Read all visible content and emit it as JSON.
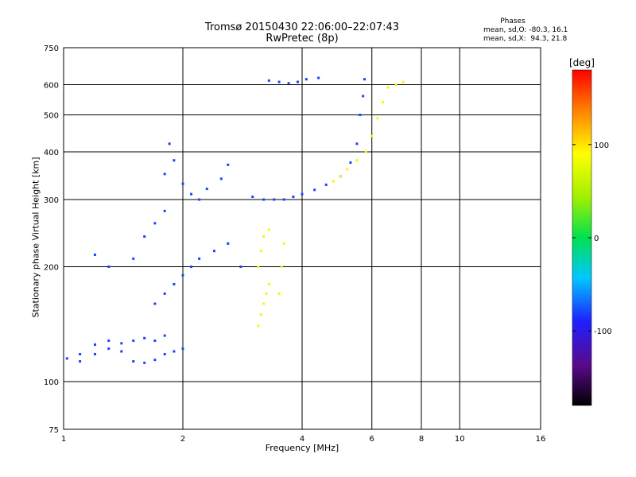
{
  "header": {
    "title_line1": "Tromsø 20150430 22:06:00–22:07:43",
    "title_line2": "RwPretec (8p)"
  },
  "phases": {
    "title": "Phases",
    "line_o": "mean, sd,O: -80.3, 16.1",
    "line_x": "mean, sd,X:  94.3, 21.8"
  },
  "colorbar": {
    "label": "[deg]",
    "ticks": [
      100,
      0,
      -100
    ],
    "range": [
      -180,
      180
    ]
  },
  "chart_data": {
    "type": "scatter",
    "title": "Tromsø 20150430 22:06:00–22:07:43",
    "subtitle": "RwPretec (8p)",
    "xlabel": "Frequency [MHz]",
    "ylabel": "Stationary phase Virtual Height [km]",
    "x_scale": "log",
    "y_scale": "log",
    "xlim": [
      1,
      16
    ],
    "ylim": [
      75,
      750
    ],
    "x_ticks": [
      1,
      2,
      4,
      6,
      8,
      10,
      16
    ],
    "y_ticks": [
      75,
      100,
      200,
      300,
      400,
      500,
      600,
      750
    ],
    "grid": true,
    "color_by": "phase (deg)",
    "series": [
      {
        "name": "O-mode",
        "phase_mean": -80.3,
        "phase_sd": 16.1,
        "points": [
          [
            1.02,
            115
          ],
          [
            1.1,
            113
          ],
          [
            1.2,
            118
          ],
          [
            1.3,
            122
          ],
          [
            1.4,
            120
          ],
          [
            1.5,
            113
          ],
          [
            1.6,
            112
          ],
          [
            1.7,
            114
          ],
          [
            1.8,
            118
          ],
          [
            1.9,
            120
          ],
          [
            2.0,
            122
          ],
          [
            1.1,
            118
          ],
          [
            1.2,
            125
          ],
          [
            1.3,
            128
          ],
          [
            1.4,
            126
          ],
          [
            1.5,
            128
          ],
          [
            1.6,
            130
          ],
          [
            1.7,
            128
          ],
          [
            1.8,
            132
          ],
          [
            1.2,
            215
          ],
          [
            1.3,
            200
          ],
          [
            1.5,
            210
          ],
          [
            1.6,
            240
          ],
          [
            1.7,
            260
          ],
          [
            1.8,
            280
          ],
          [
            1.8,
            350
          ],
          [
            1.85,
            420
          ],
          [
            1.9,
            380
          ],
          [
            2.0,
            330
          ],
          [
            2.1,
            310
          ],
          [
            2.2,
            300
          ],
          [
            2.3,
            320
          ],
          [
            2.5,
            340
          ],
          [
            2.6,
            370
          ],
          [
            1.7,
            160
          ],
          [
            1.8,
            170
          ],
          [
            1.9,
            180
          ],
          [
            2.0,
            190
          ],
          [
            2.1,
            200
          ],
          [
            2.2,
            210
          ],
          [
            2.4,
            220
          ],
          [
            2.6,
            230
          ],
          [
            2.8,
            200
          ],
          [
            3.0,
            305
          ],
          [
            3.2,
            300
          ],
          [
            3.4,
            300
          ],
          [
            3.6,
            300
          ],
          [
            3.8,
            305
          ],
          [
            4.0,
            310
          ],
          [
            4.3,
            318
          ],
          [
            4.6,
            328
          ],
          [
            5.0,
            345
          ],
          [
            5.3,
            375
          ],
          [
            5.5,
            420
          ],
          [
            5.6,
            500
          ],
          [
            5.7,
            560
          ],
          [
            5.75,
            620
          ],
          [
            3.3,
            615
          ],
          [
            3.5,
            610
          ],
          [
            3.7,
            605
          ],
          [
            3.9,
            610
          ],
          [
            4.1,
            620
          ],
          [
            4.4,
            625
          ]
        ]
      },
      {
        "name": "X-mode",
        "phase_mean": 94.3,
        "phase_sd": 21.8,
        "points": [
          [
            3.1,
            140
          ],
          [
            3.15,
            150
          ],
          [
            3.2,
            160
          ],
          [
            3.25,
            170
          ],
          [
            3.3,
            180
          ],
          [
            3.1,
            200
          ],
          [
            3.15,
            220
          ],
          [
            3.2,
            240
          ],
          [
            3.3,
            250
          ],
          [
            3.5,
            170
          ],
          [
            3.55,
            200
          ],
          [
            3.6,
            230
          ],
          [
            4.8,
            335
          ],
          [
            5.0,
            345
          ],
          [
            5.2,
            360
          ],
          [
            5.5,
            380
          ],
          [
            5.8,
            400
          ],
          [
            6.0,
            440
          ],
          [
            6.2,
            490
          ],
          [
            6.4,
            540
          ],
          [
            6.6,
            590
          ],
          [
            6.9,
            600
          ],
          [
            7.2,
            610
          ]
        ]
      }
    ]
  }
}
